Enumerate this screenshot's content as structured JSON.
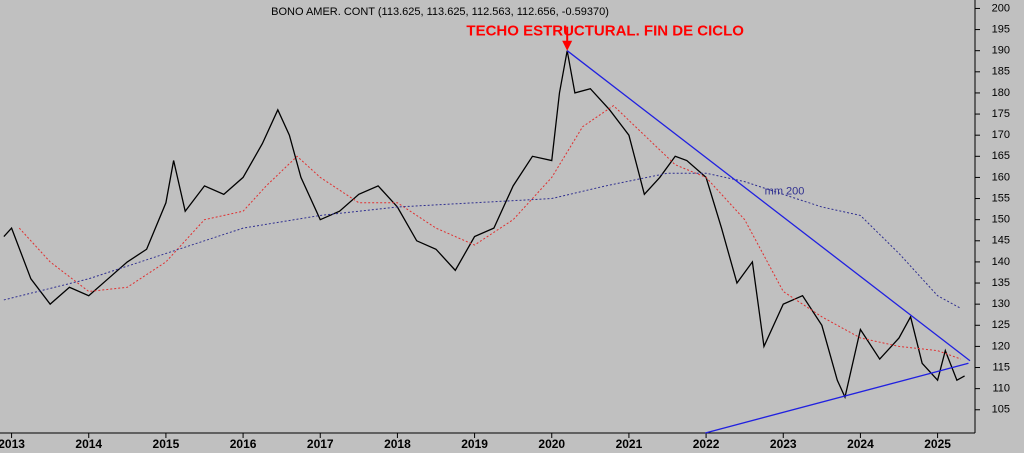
{
  "chart_data": {
    "type": "line",
    "title": "BONO AMER. CONT (113.625, 113.625, 112.563, 112.656, -0.59370)",
    "annotation": "TECHO ESTRUCTURAL. FIN DE CICLO",
    "annotation_x": 2020.2,
    "annotation_value": 190,
    "xlim": [
      2012.85,
      2025.42
    ],
    "xticks": [
      2013,
      2014,
      2015,
      2016,
      2017,
      2018,
      2019,
      2020,
      2021,
      2022,
      2023,
      2024,
      2025
    ],
    "ylim": [
      99.5,
      202
    ],
    "yticks": [
      105,
      110,
      115,
      120,
      125,
      130,
      135,
      140,
      145,
      150,
      155,
      160,
      165,
      170,
      175,
      180,
      185,
      190,
      195,
      200
    ],
    "background": "#c0c0c0",
    "series": [
      {
        "color": "#000000",
        "style": "solid",
        "x": [
          2012.9,
          2013.0,
          2013.25,
          2013.5,
          2013.75,
          2014.0,
          2014.25,
          2014.5,
          2014.75,
          2015.0,
          2015.1,
          2015.25,
          2015.5,
          2015.75,
          2016.0,
          2016.25,
          2016.45,
          2016.6,
          2016.75,
          2017.0,
          2017.25,
          2017.5,
          2017.75,
          2018.0,
          2018.25,
          2018.5,
          2018.75,
          2019.0,
          2019.25,
          2019.5,
          2019.75,
          2020.0,
          2020.1,
          2020.2,
          2020.3,
          2020.5,
          2020.75,
          2021.0,
          2021.2,
          2021.4,
          2021.6,
          2021.75,
          2022.0,
          2022.2,
          2022.4,
          2022.6,
          2022.75,
          2023.0,
          2023.25,
          2023.5,
          2023.7,
          2023.8,
          2024.0,
          2024.25,
          2024.5,
          2024.65,
          2024.8,
          2025.0,
          2025.1,
          2025.25,
          2025.35
        ],
        "values": [
          146,
          148,
          136,
          130,
          134,
          132,
          136,
          140,
          143,
          154,
          164,
          152,
          158,
          156,
          160,
          168,
          176,
          170,
          160,
          150,
          152,
          156,
          158,
          153,
          145,
          143,
          138,
          146,
          148,
          158,
          165,
          164,
          180,
          190,
          180,
          181,
          176,
          170,
          156,
          160,
          165,
          164,
          160,
          148,
          135,
          140,
          120,
          130,
          132,
          125,
          112,
          108,
          124,
          117,
          122,
          127,
          116,
          112,
          119,
          112,
          113
        ]
      },
      {
        "color": "#e03030",
        "style": "dotted",
        "x": [
          2013.1,
          2013.5,
          2014.0,
          2014.5,
          2015.0,
          2015.5,
          2016.0,
          2016.3,
          2016.7,
          2017.0,
          2017.5,
          2018.0,
          2018.5,
          2019.0,
          2019.5,
          2020.0,
          2020.4,
          2020.8,
          2021.2,
          2021.6,
          2022.0,
          2022.5,
          2023.0,
          2023.5,
          2024.0,
          2024.5,
          2025.0,
          2025.3
        ],
        "values": [
          148,
          140,
          133,
          134,
          140,
          150,
          152,
          158,
          165,
          160,
          154,
          154,
          148,
          144,
          150,
          160,
          172,
          177,
          170,
          163,
          160,
          150,
          133,
          127,
          122,
          120,
          119,
          117
        ]
      },
      {
        "name": "mm 200",
        "color": "#303090",
        "style": "dotted",
        "x": [
          2012.9,
          2014.0,
          2015.0,
          2016.0,
          2017.0,
          2018.0,
          2019.0,
          2020.0,
          2020.7,
          2021.5,
          2022.0,
          2022.5,
          2023.5,
          2024.0,
          2024.5,
          2025.0,
          2025.3
        ],
        "values": [
          131,
          136,
          142,
          148,
          151,
          153,
          154,
          155,
          158,
          161,
          161,
          159,
          153,
          151,
          142,
          132,
          129
        ]
      },
      {
        "color": "#2020e0",
        "style": "solid",
        "x": [
          2020.2,
          2025.42
        ],
        "values": [
          190,
          116.6
        ]
      },
      {
        "color": "#2020e0",
        "style": "solid",
        "x": [
          2021.99,
          2025.4
        ],
        "values": [
          99.5,
          116
        ]
      }
    ]
  }
}
